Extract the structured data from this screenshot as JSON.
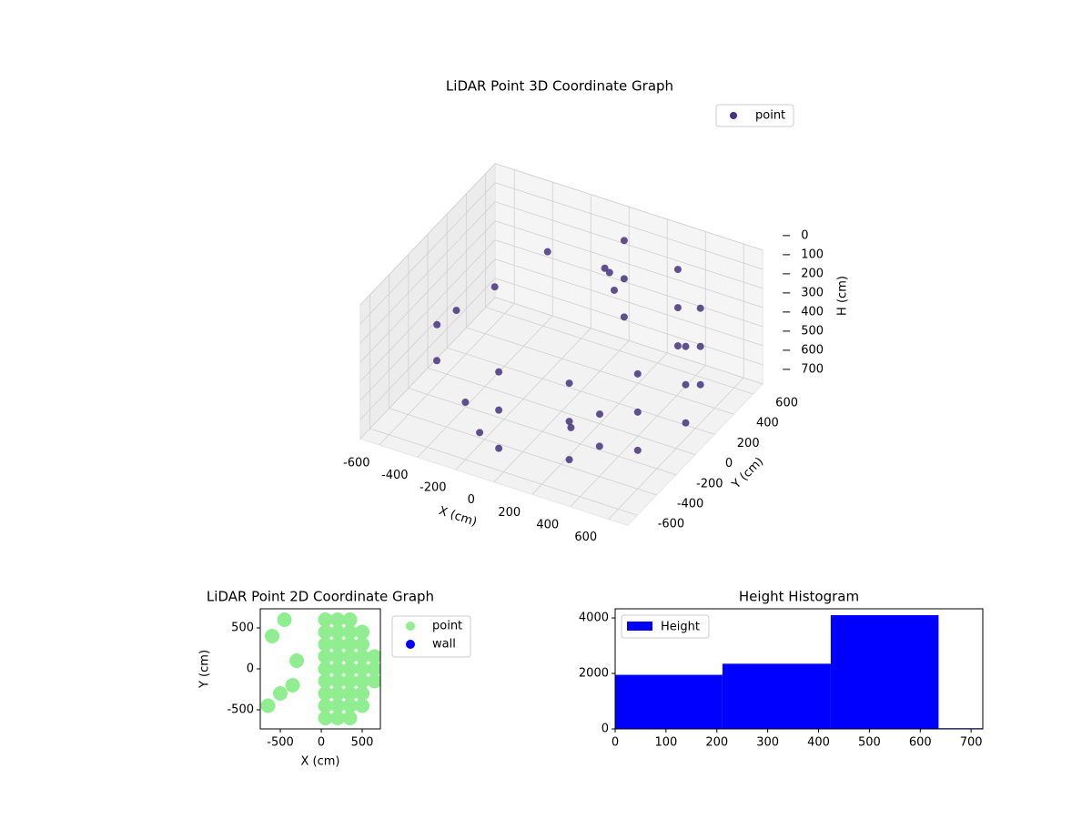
{
  "chart_data": [
    {
      "type": "scatter3d",
      "title": "LiDAR Point 3D Coordinate Graph",
      "xlabel": "X (cm)",
      "ylabel": "Y (cm)",
      "zlabel": "H (cm)",
      "xlim": [
        -700,
        700
      ],
      "ylim": [
        -700,
        700
      ],
      "zlim": [
        700,
        0
      ],
      "xticks": [
        -600,
        -400,
        -200,
        0,
        200,
        400,
        600
      ],
      "yticks": [
        -600,
        -400,
        -200,
        0,
        200,
        400,
        600
      ],
      "zticks": [
        0,
        100,
        200,
        300,
        400,
        500,
        600,
        700
      ],
      "legend": "upper right",
      "series": [
        {
          "name": "point",
          "color": "#46337e",
          "x": [
            0,
            325,
            563,
            650,
            563,
            325,
            0,
            0,
            325,
            563,
            650,
            563,
            325,
            0,
            0,
            325,
            563,
            650,
            563,
            325,
            0,
            -400,
            -500,
            -450,
            -300,
            -550,
            -200,
            -100,
            100,
            150,
            50,
            200,
            300,
            100
          ],
          "y": [
            -650,
            -563,
            -325,
            0,
            325,
            563,
            650,
            -650,
            -563,
            -325,
            0,
            325,
            563,
            650,
            -650,
            -563,
            -325,
            0,
            325,
            563,
            650,
            -500,
            -300,
            200,
            450,
            0,
            -600,
            -650,
            300,
            250,
            350,
            0,
            -200,
            -100
          ],
          "z": [
            150,
            150,
            150,
            150,
            150,
            150,
            150,
            350,
            350,
            350,
            350,
            350,
            350,
            350,
            550,
            550,
            550,
            550,
            550,
            550,
            550,
            300,
            250,
            300,
            200,
            350,
            400,
            500,
            100,
            150,
            120,
            650,
            680,
            700
          ]
        }
      ]
    },
    {
      "type": "scatter",
      "title": "LiDAR Point 2D Coordinate Graph",
      "xlabel": "X (cm)",
      "ylabel": "Y (cm)",
      "xlim": [
        -745,
        722
      ],
      "ylim": [
        -733,
        733
      ],
      "xticks": [
        -500,
        0,
        500
      ],
      "yticks": [
        -500,
        0,
        500
      ],
      "legend": "outside right",
      "series": [
        {
          "name": "point",
          "color": "#90ee90",
          "x": [
            650,
            650,
            650,
            500,
            500,
            500,
            500,
            500,
            500,
            500,
            350,
            350,
            350,
            350,
            350,
            350,
            350,
            350,
            350,
            200,
            200,
            200,
            200,
            200,
            200,
            200,
            200,
            200,
            50,
            50,
            50,
            50,
            50,
            50,
            50,
            50,
            50,
            -600,
            -450,
            -500,
            -350,
            -650,
            -300
          ],
          "y": [
            -150,
            0,
            150,
            -450,
            -300,
            -150,
            0,
            150,
            300,
            450,
            -600,
            -450,
            -300,
            -150,
            0,
            150,
            300,
            450,
            600,
            -600,
            -450,
            -300,
            -150,
            0,
            150,
            300,
            450,
            600,
            -600,
            -450,
            -300,
            -150,
            0,
            150,
            300,
            450,
            600,
            400,
            600,
            -300,
            -200,
            -450,
            100
          ]
        },
        {
          "name": "wall",
          "color": "#0000ff",
          "x": [],
          "y": []
        }
      ]
    },
    {
      "type": "histogram",
      "title": "Height Histogram",
      "name": "Height",
      "color": "#0000ff",
      "bins": [
        0,
        211,
        424,
        636,
        723
      ],
      "values": [
        1950,
        2350,
        4100,
        25
      ],
      "xlim": [
        0,
        723
      ],
      "ylim": [
        0,
        4330
      ],
      "xticks": [
        0,
        100,
        200,
        300,
        400,
        500,
        600,
        700
      ],
      "yticks": [
        0,
        2000,
        4000
      ],
      "legend": "upper left"
    }
  ]
}
